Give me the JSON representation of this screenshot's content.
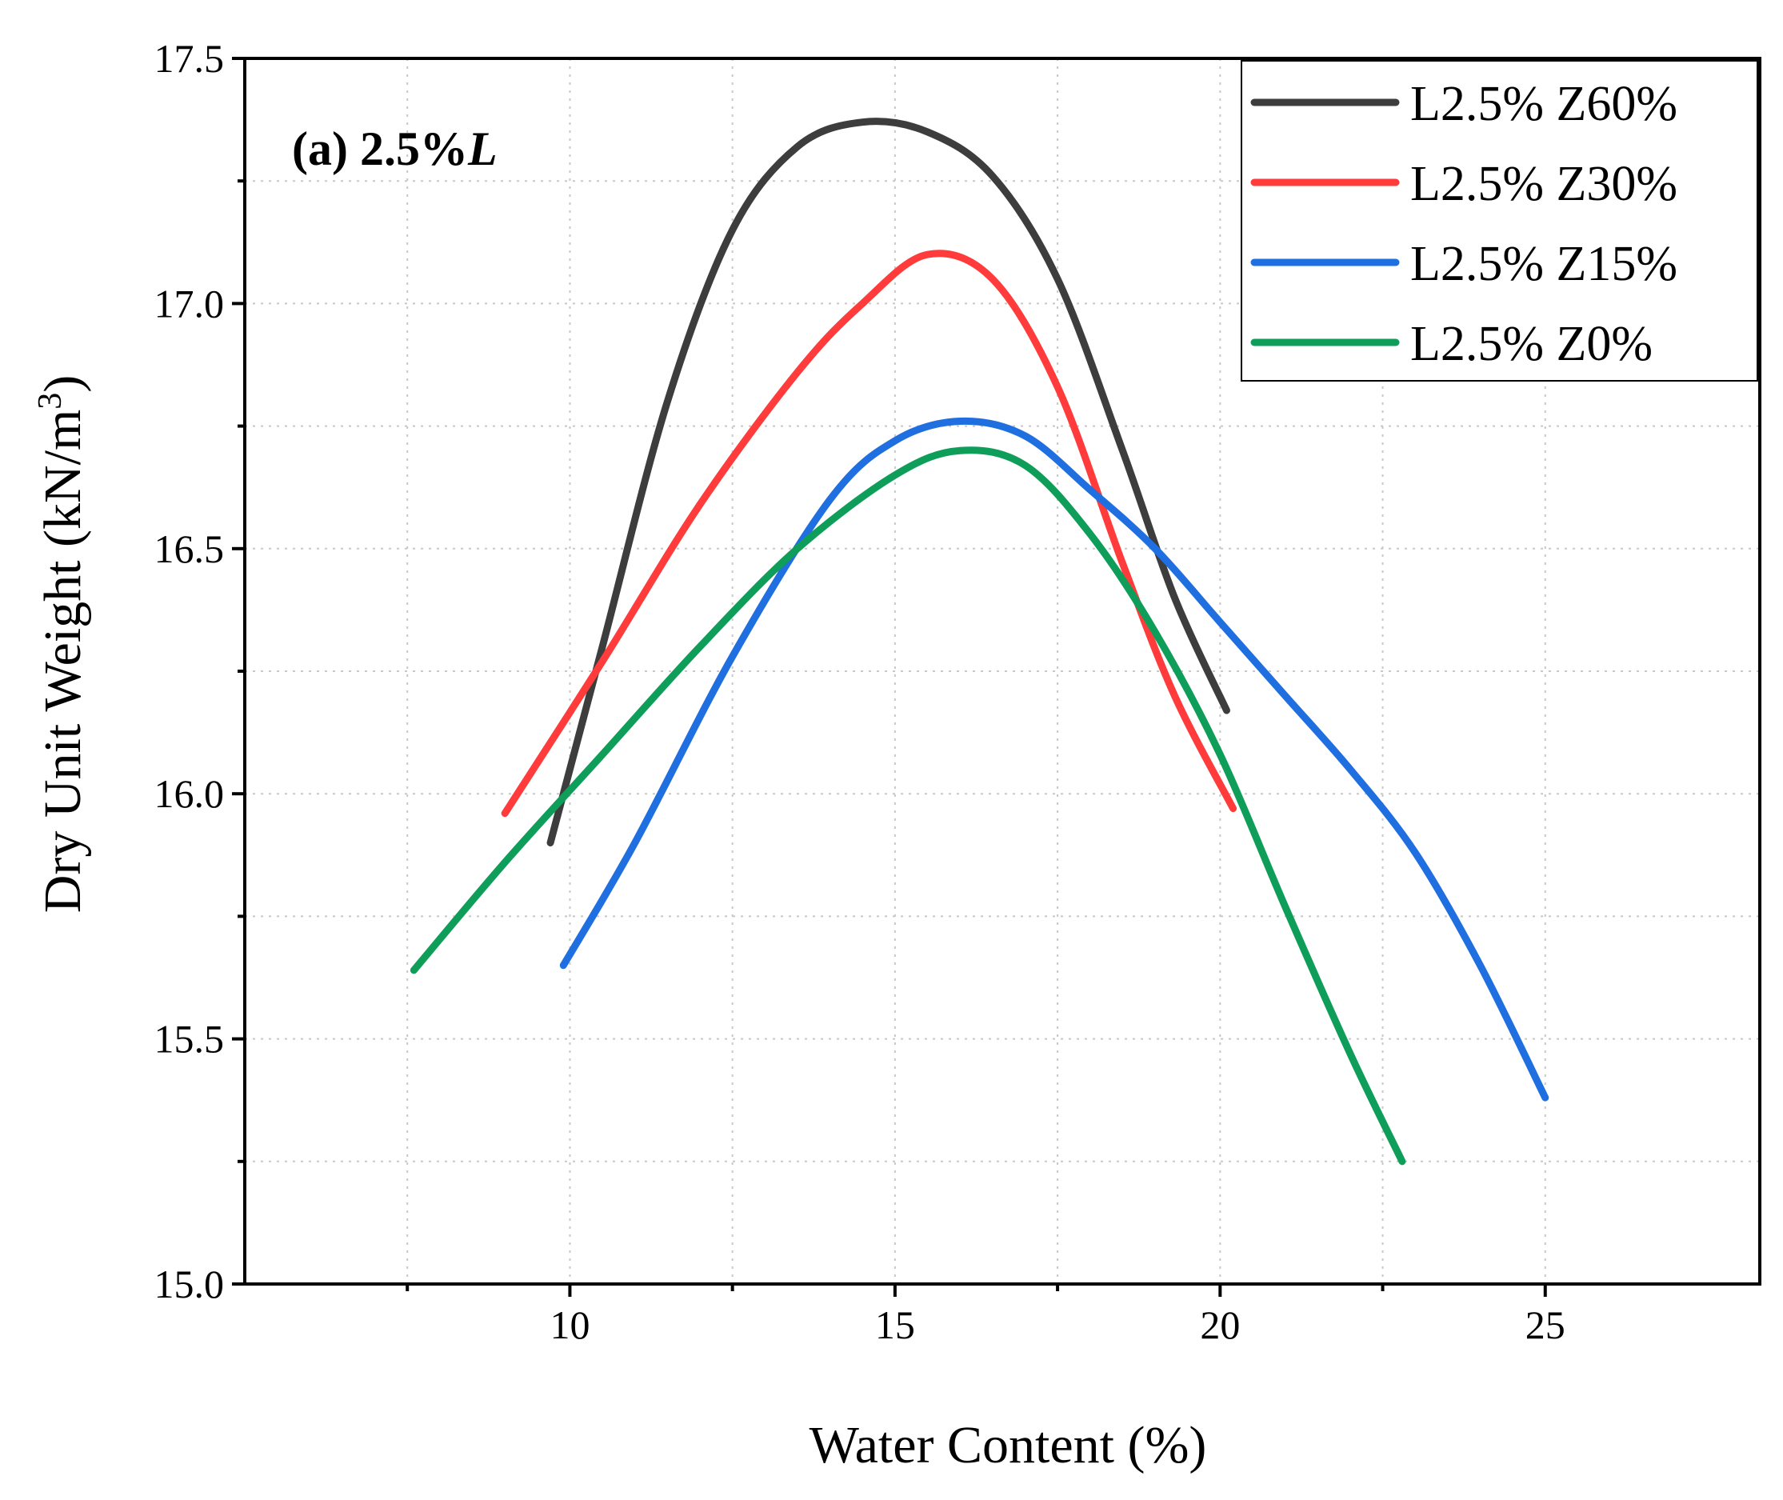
{
  "chart_data": {
    "type": "line",
    "xlabel": "Water Content (%)",
    "ylabel": "Dry Unit Weight (kN/m",
    "ylabel_superscript": "3",
    "ylabel_close": ")",
    "annotation": {
      "prefix": "(a) 2.5%",
      "italic": "L"
    },
    "xlim": [
      5,
      28.3
    ],
    "ylim": [
      15.0,
      17.5
    ],
    "x_ticks": [
      10,
      15,
      20,
      25
    ],
    "x_minor_ticks": [
      7.5,
      12.5,
      17.5,
      22.5
    ],
    "x_tick_labels": [
      "10",
      "15",
      "20",
      "25"
    ],
    "y_ticks": [
      15.0,
      15.5,
      16.0,
      16.5,
      17.0,
      17.5
    ],
    "y_minor_ticks": [
      15.25,
      15.75,
      16.25,
      16.75,
      17.25
    ],
    "y_tick_labels": [
      "15.0",
      "15.5",
      "16.0",
      "16.5",
      "17.0",
      "17.5"
    ],
    "grid": true,
    "legend_position": "top-right",
    "series": [
      {
        "name": "L2.5% Z60%",
        "color": "#3d3d3d",
        "x": [
          9.7,
          10.5,
          11.5,
          12.5,
          13.5,
          14.5,
          15.5,
          16.5,
          17.5,
          18.5,
          19.3,
          20.1
        ],
        "y": [
          15.9,
          16.3,
          16.8,
          17.15,
          17.32,
          17.37,
          17.35,
          17.26,
          17.05,
          16.7,
          16.4,
          16.17
        ]
      },
      {
        "name": "L2.5% Z30%",
        "color": "#ff3b3b",
        "x": [
          9.0,
          10.5,
          12.0,
          13.5,
          14.5,
          15.5,
          16.5,
          17.5,
          18.5,
          19.3,
          20.2
        ],
        "y": [
          15.96,
          16.27,
          16.59,
          16.86,
          17.0,
          17.1,
          17.05,
          16.83,
          16.47,
          16.2,
          15.97
        ]
      },
      {
        "name": "L2.5% Z15%",
        "color": "#1f6fe0",
        "x": [
          9.9,
          11.0,
          12.5,
          14.0,
          15.0,
          16.0,
          17.0,
          18.0,
          19.0,
          20.0,
          21.0,
          22.0,
          23.0,
          24.0,
          25.0
        ],
        "y": [
          15.65,
          15.9,
          16.28,
          16.6,
          16.72,
          16.76,
          16.73,
          16.62,
          16.5,
          16.35,
          16.2,
          16.05,
          15.88,
          15.65,
          15.38
        ]
      },
      {
        "name": "L2.5% Z0%",
        "color": "#0f9e5a",
        "x": [
          7.6,
          9.0,
          10.5,
          12.0,
          13.5,
          15.0,
          16.0,
          17.0,
          18.0,
          19.0,
          20.0,
          21.0,
          22.0,
          22.8
        ],
        "y": [
          15.64,
          15.86,
          16.08,
          16.3,
          16.5,
          16.65,
          16.7,
          16.67,
          16.53,
          16.33,
          16.08,
          15.77,
          15.47,
          15.25
        ]
      }
    ]
  }
}
